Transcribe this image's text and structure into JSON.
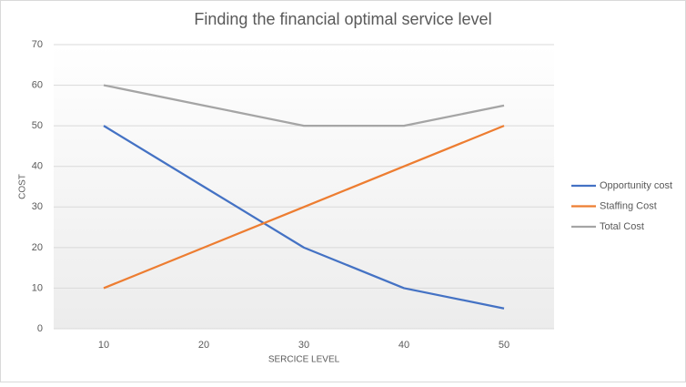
{
  "chart_data": {
    "type": "line",
    "title": "Finding the financial optimal service level",
    "x_label": "SERCICE LEVEL",
    "y_label": "COST",
    "categories": [
      10,
      20,
      30,
      40,
      50
    ],
    "series": [
      {
        "name": "Opportunity cost",
        "color": "#4472c4",
        "values": [
          50,
          35,
          20,
          10,
          5
        ]
      },
      {
        "name": "Staffing Cost",
        "color": "#ed7d31",
        "values": [
          10,
          20,
          30,
          40,
          50
        ]
      },
      {
        "name": "Total Cost",
        "color": "#a5a5a5",
        "values": [
          60,
          55,
          50,
          50,
          55
        ]
      }
    ],
    "ylim": [
      0,
      70
    ],
    "yticks": [
      0,
      10,
      20,
      30,
      40,
      50,
      60,
      70
    ],
    "grid": true,
    "legend": "right"
  }
}
